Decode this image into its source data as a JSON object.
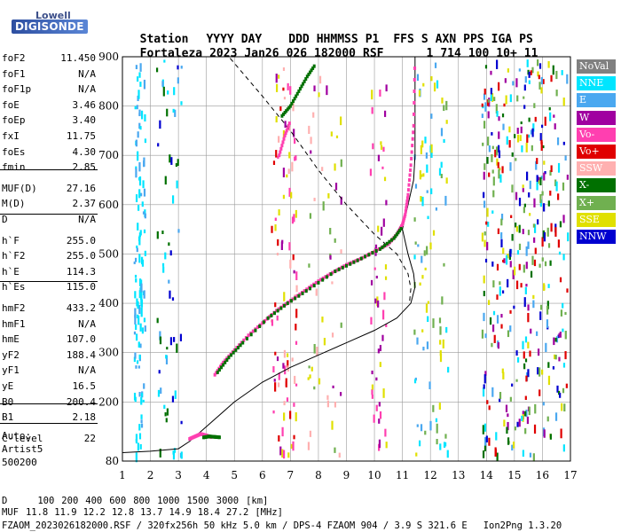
{
  "logo": {
    "line1": "Lowell",
    "line2": "DIGISONDE"
  },
  "header": {
    "labels": [
      "Station",
      "YYYY",
      "DAY",
      "DDD",
      "HHMMSS",
      "P1",
      "FFS",
      "S",
      "AXN",
      "PPS",
      "IGA",
      "PS"
    ],
    "values": [
      "Fortaleza",
      "2023",
      "Jan26",
      "026",
      "182000",
      "RSF",
      "1",
      "714",
      "100",
      "10+",
      "11"
    ]
  },
  "params": [
    {
      "name": "foF2",
      "value": "11.450"
    },
    {
      "name": "foF1",
      "value": "N/A"
    },
    {
      "name": "foF1p",
      "value": "N/A"
    },
    {
      "name": "foE",
      "value": "3.46"
    },
    {
      "name": "foEp",
      "value": "3.40"
    },
    {
      "name": "fxI",
      "value": "11.75"
    },
    {
      "name": "foEs",
      "value": "4.30"
    },
    {
      "name": "fmin",
      "value": "2.85"
    },
    {
      "name": "MUF(D)",
      "value": "27.16"
    },
    {
      "name": "M(D)",
      "value": "2.37"
    },
    {
      "name": "D",
      "value": "N/A"
    },
    {
      "name": "h`F",
      "value": "255.0"
    },
    {
      "name": "h`F2",
      "value": "255.0"
    },
    {
      "name": "h`E",
      "value": "114.3"
    },
    {
      "name": "h`Es",
      "value": "115.0"
    },
    {
      "name": "hmF2",
      "value": "433.2"
    },
    {
      "name": "hmF1",
      "value": "N/A"
    },
    {
      "name": "hmE",
      "value": "107.0"
    },
    {
      "name": "yF2",
      "value": "188.4"
    },
    {
      "name": "yF1",
      "value": "N/A"
    },
    {
      "name": "yE",
      "value": "16.5"
    },
    {
      "name": "B0",
      "value": "200.4"
    },
    {
      "name": "B1",
      "value": "2.18"
    },
    {
      "name": "C-level",
      "value": "22"
    }
  ],
  "auto": {
    "line1": "Auto:",
    "line2": "Artist5",
    "line3": "500200"
  },
  "legend": [
    {
      "label": "NoVal",
      "color": "#808080"
    },
    {
      "label": "NNE",
      "color": "#00e5ff"
    },
    {
      "label": "E",
      "color": "#4aa8f0"
    },
    {
      "label": "W",
      "color": "#a000a0"
    },
    {
      "label": "Vo-",
      "color": "#ff3fb0"
    },
    {
      "label": "Vo+",
      "color": "#e00000"
    },
    {
      "label": "SSW",
      "color": "#ffb0b0"
    },
    {
      "label": "X-",
      "color": "#007000"
    },
    {
      "label": "X+",
      "color": "#70b050"
    },
    {
      "label": "SSE",
      "color": "#e0e000"
    },
    {
      "label": "NNW",
      "color": "#0000d0"
    }
  ],
  "footer": {
    "d_label": "D",
    "d_values": [
      "100",
      "200",
      "400",
      "600",
      "800",
      "1000",
      "1500",
      "3000",
      "[km]"
    ],
    "muf_label": "MUF",
    "muf_values": [
      "11.8",
      "11.9",
      "12.2",
      "12.8",
      "13.7",
      "14.9",
      "18.4",
      "27.2",
      "[MHz]"
    ],
    "file_line": "FZAOM_2023026182000.RSF / 320fx256h 50 kHz 5.0 km / DPS-4 FZAOM 904 / 3.9 S 321.6 E",
    "version": "Ion2Png 1.3.20"
  },
  "chart_data": {
    "type": "scatter",
    "title": "",
    "xlabel": "",
    "ylabel": "",
    "xlim": [
      1,
      17
    ],
    "ylim": [
      80,
      900
    ],
    "x_ticks": [
      1,
      2,
      3,
      4,
      5,
      6,
      7,
      8,
      9,
      10,
      11,
      12,
      13,
      14,
      15,
      16,
      17
    ],
    "y_ticks": [
      80,
      200,
      300,
      400,
      500,
      600,
      700,
      800,
      900
    ],
    "grid": true,
    "legend_position": "right",
    "series": [
      {
        "color": "#ff3fb0",
        "points": [
          [
            4.3,
            255
          ],
          [
            4.6,
            280
          ],
          [
            5.0,
            305
          ],
          [
            5.5,
            335
          ],
          [
            6.0,
            360
          ],
          [
            6.5,
            385
          ],
          [
            7.0,
            405
          ],
          [
            7.5,
            425
          ],
          [
            8.0,
            445
          ],
          [
            8.5,
            462
          ],
          [
            9.0,
            478
          ],
          [
            9.5,
            490
          ],
          [
            10.0,
            505
          ],
          [
            10.5,
            520
          ],
          [
            10.8,
            540
          ],
          [
            11.0,
            560
          ],
          [
            11.1,
            580
          ],
          [
            11.2,
            620
          ],
          [
            11.3,
            680
          ],
          [
            11.4,
            760
          ],
          [
            11.45,
            900
          ]
        ]
      },
      {
        "color": "#007000",
        "points": [
          [
            4.4,
            260
          ],
          [
            4.8,
            290
          ],
          [
            5.3,
            320
          ],
          [
            6.2,
            370
          ],
          [
            6.9,
            400
          ],
          [
            7.7,
            430
          ],
          [
            8.6,
            465
          ],
          [
            9.4,
            487
          ],
          [
            10.2,
            510
          ],
          [
            10.7,
            532
          ],
          [
            11.0,
            555
          ]
        ]
      },
      {
        "color": "#ff3fb0",
        "points": [
          [
            3.4,
            125
          ],
          [
            3.6,
            130
          ],
          [
            3.8,
            135
          ],
          [
            4.0,
            132
          ],
          [
            4.2,
            128
          ]
        ]
      },
      {
        "color": "#007000",
        "points": [
          [
            3.9,
            128
          ],
          [
            4.1,
            130
          ],
          [
            4.3,
            129
          ],
          [
            4.5,
            128
          ]
        ]
      },
      {
        "color": "#007000",
        "points": [
          [
            6.7,
            780
          ],
          [
            7.0,
            800
          ],
          [
            7.3,
            830
          ],
          [
            7.6,
            860
          ],
          [
            7.9,
            885
          ]
        ]
      },
      {
        "color": "#ff3fb0",
        "points": [
          [
            6.6,
            700
          ],
          [
            6.8,
            740
          ],
          [
            7.0,
            770
          ]
        ]
      }
    ],
    "profile_line": [
      [
        1.0,
        97
      ],
      [
        2.0,
        100
      ],
      [
        3.0,
        105
      ],
      [
        3.4,
        120
      ],
      [
        4.0,
        150
      ],
      [
        5.0,
        200
      ],
      [
        6.0,
        240
      ],
      [
        7.0,
        270
      ],
      [
        8.0,
        295
      ],
      [
        9.0,
        320
      ],
      [
        10.0,
        345
      ],
      [
        10.8,
        370
      ],
      [
        11.3,
        400
      ],
      [
        11.45,
        433
      ],
      [
        11.4,
        460
      ],
      [
        11.2,
        500
      ],
      [
        11.0,
        550
      ],
      [
        11.2,
        600
      ],
      [
        11.4,
        650
      ],
      [
        11.45,
        700
      ],
      [
        11.45,
        900
      ]
    ],
    "dashed_line": [
      [
        4.3,
        900
      ],
      [
        4.8,
        900
      ],
      [
        6.0,
        820
      ],
      [
        7.0,
        750
      ],
      [
        8.0,
        670
      ],
      [
        9.0,
        600
      ],
      [
        10.0,
        540
      ],
      [
        10.8,
        500
      ],
      [
        11.2,
        460
      ],
      [
        11.3,
        430
      ],
      [
        11.25,
        400
      ]
    ]
  }
}
